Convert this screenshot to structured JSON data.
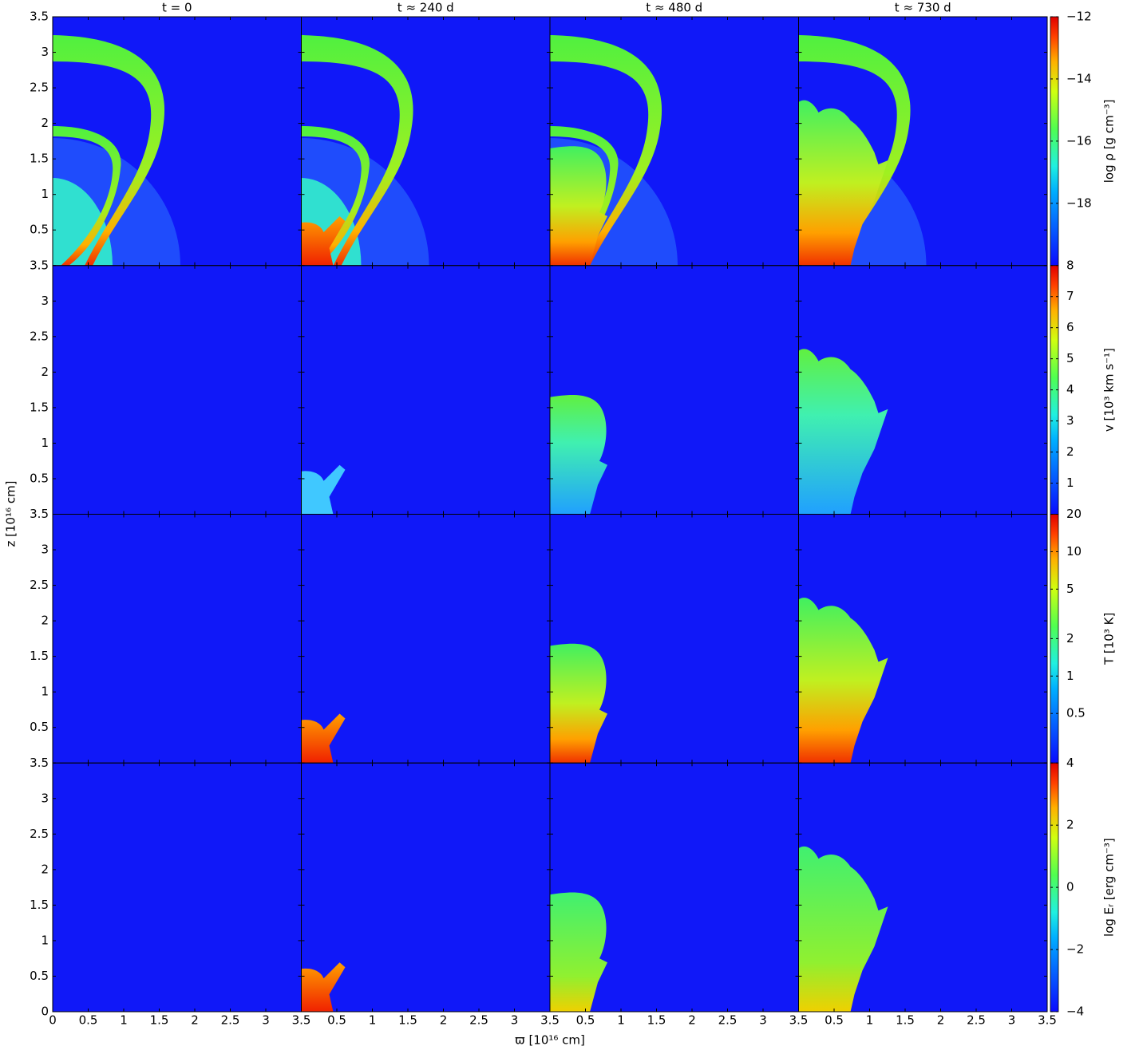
{
  "chart_data": {
    "type": "heatmap-grid",
    "xlabel": "ϖ [10¹⁶ cm]",
    "ylabel": "z [10¹⁶ cm]",
    "xlim": [
      0,
      3.5
    ],
    "ylim": [
      0,
      3.5
    ],
    "xticks": [
      0,
      0.5,
      1,
      1.5,
      2,
      2.5,
      3,
      3.5
    ],
    "yticks": [
      0,
      0.5,
      1,
      1.5,
      2,
      2.5,
      3,
      3.5
    ],
    "columns": [
      {
        "title": "t = 0"
      },
      {
        "title": "t ≈ 240 d"
      },
      {
        "title": "t ≈ 480 d"
      },
      {
        "title": "t ≈ 730 d"
      }
    ],
    "rows": [
      {
        "colorbar_label": "log ρ [g cm⁻³]",
        "log": false,
        "clim": [
          -20,
          -12
        ],
        "cticks": [
          {
            "value": -12,
            "label": "−12"
          },
          {
            "value": -14,
            "label": "−14"
          },
          {
            "value": -16,
            "label": "−16"
          },
          {
            "value": -18,
            "label": "−18"
          }
        ]
      },
      {
        "colorbar_label": "v [10³ km s⁻¹]",
        "log": false,
        "clim": [
          0,
          8
        ],
        "cticks": [
          1,
          2,
          3,
          4,
          5,
          6,
          7,
          8
        ]
      },
      {
        "colorbar_label": "T [10³ K]",
        "log": true,
        "clim": [
          0.2,
          20
        ],
        "cticks": [
          0.5,
          1,
          2,
          5,
          10,
          20
        ]
      },
      {
        "colorbar_label": "log Eᵣ [erg cm⁻³]",
        "log": false,
        "clim": [
          -4,
          4
        ],
        "cticks": [
          4,
          2,
          0,
          {
            "value": -2,
            "label": "−2"
          },
          {
            "value": -4,
            "label": "−4"
          }
        ]
      }
    ]
  }
}
